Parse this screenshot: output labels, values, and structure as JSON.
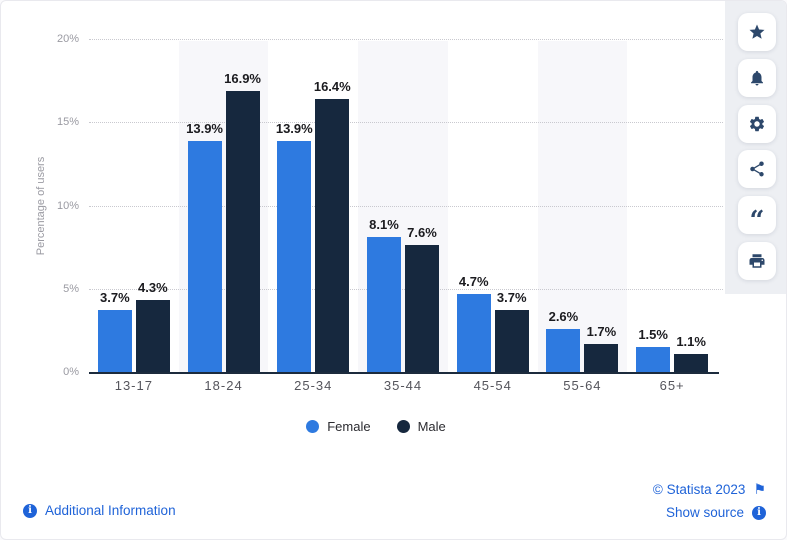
{
  "chart_data": {
    "type": "bar",
    "categories": [
      "13-17",
      "18-24",
      "25-34",
      "35-44",
      "45-54",
      "55-64",
      "65+"
    ],
    "series": [
      {
        "name": "Female",
        "color": "#2e7ae0",
        "values": [
          3.7,
          13.9,
          13.9,
          8.1,
          4.7,
          2.6,
          1.5
        ]
      },
      {
        "name": "Male",
        "color": "#16283e",
        "values": [
          4.3,
          16.9,
          16.4,
          7.6,
          3.7,
          1.7,
          1.1
        ]
      }
    ],
    "value_label_suffix": "%",
    "ylabel": "Percentage of users",
    "ylim": [
      0,
      20
    ],
    "yticks": [
      "0%",
      "5%",
      "10%",
      "15%",
      "20%"
    ],
    "grid": "horizontal-dotted",
    "banded_columns": [
      1,
      3,
      5
    ],
    "legend_position": "bottom"
  },
  "toolbar": {
    "buttons": [
      "favorite-star",
      "notifications-bell",
      "settings-gear",
      "share",
      "cite-quote",
      "print"
    ]
  },
  "footer": {
    "additional_info_label": "Additional Information",
    "copyright": "© Statista 2023",
    "show_source_label": "Show source"
  },
  "colors": {
    "link_blue": "#1f63d8",
    "tool_icon": "#2d486b",
    "panel_gray": "#edeff3",
    "column_band": "#f7f7fa",
    "gridline": "#c9c9cf",
    "axis_line": "#1c2b3d",
    "tick_text": "#9a9aa2",
    "xlabel_text": "#55555c",
    "value_text": "#1b1b1f"
  }
}
